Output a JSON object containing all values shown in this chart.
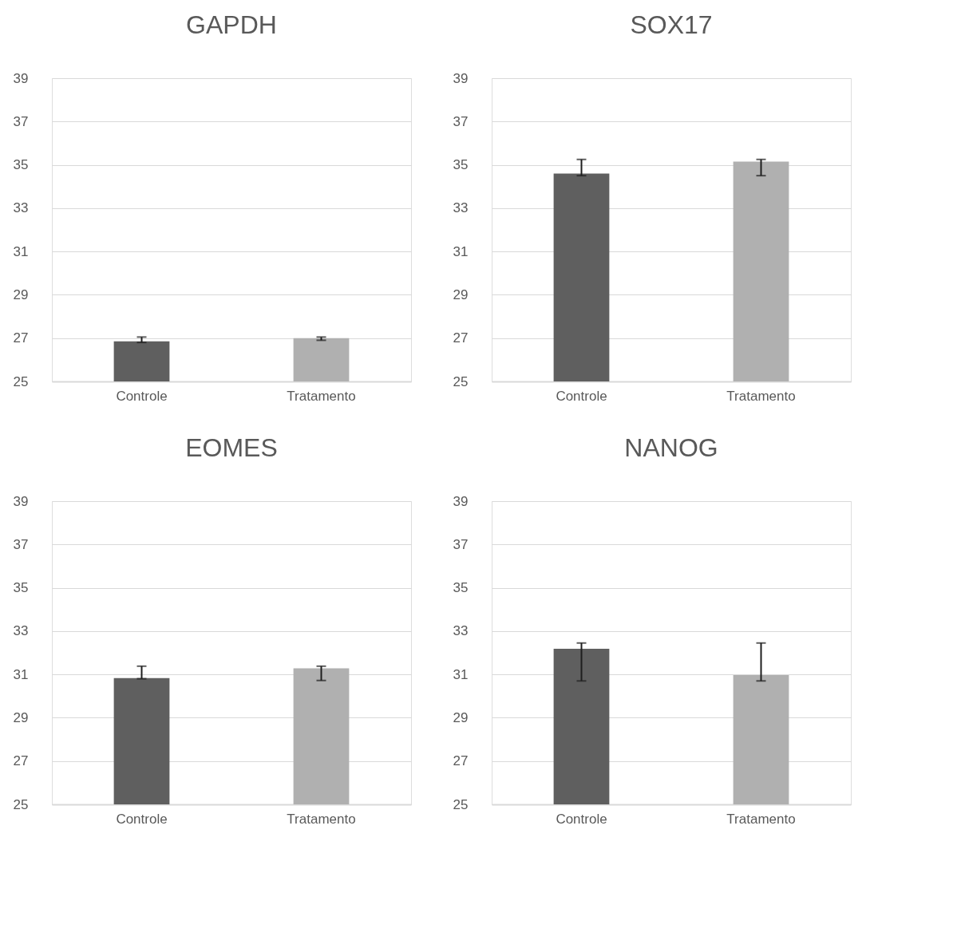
{
  "chart_data": [
    {
      "type": "bar",
      "title": "GAPDH",
      "categories": [
        "Controle",
        "Tratamento"
      ],
      "values": [
        26.85,
        27.0
      ],
      "colors": [
        "#5f5f5f",
        "#b0b0b0"
      ],
      "errors": [
        [
          26.8,
          27.05
        ],
        [
          26.9,
          27.05
        ]
      ],
      "ylim": [
        25,
        39
      ],
      "yticks": [
        25,
        27,
        29,
        31,
        33,
        35,
        37,
        39
      ],
      "grid": "y"
    },
    {
      "type": "bar",
      "title": "SOX17",
      "categories": [
        "Controle",
        "Tratamento"
      ],
      "values": [
        34.6,
        35.15
      ],
      "colors": [
        "#5f5f5f",
        "#b0b0b0"
      ],
      "errors": [
        [
          34.5,
          35.25
        ],
        [
          34.5,
          35.25
        ]
      ],
      "ylim": [
        25,
        39
      ],
      "yticks": [
        25,
        27,
        29,
        31,
        33,
        35,
        37,
        39
      ],
      "grid": "y"
    },
    {
      "type": "bar",
      "title": "EOMES",
      "categories": [
        "Controle",
        "Tratamento"
      ],
      "values": [
        30.83,
        31.28
      ],
      "colors": [
        "#5f5f5f",
        "#b0b0b0"
      ],
      "errors": [
        [
          30.8,
          31.38
        ],
        [
          30.72,
          31.38
        ]
      ],
      "ylim": [
        25,
        39
      ],
      "yticks": [
        25,
        27,
        29,
        31,
        33,
        35,
        37,
        39
      ],
      "grid": "y"
    },
    {
      "type": "bar",
      "title": "NANOG",
      "categories": [
        "Controle",
        "Tratamento"
      ],
      "values": [
        32.18,
        30.97
      ],
      "colors": [
        "#5f5f5f",
        "#b0b0b0"
      ],
      "errors": [
        [
          30.7,
          32.45
        ],
        [
          30.7,
          32.45
        ]
      ],
      "ylim": [
        25,
        39
      ],
      "yticks": [
        25,
        27,
        29,
        31,
        33,
        35,
        37,
        39
      ],
      "grid": "y"
    }
  ]
}
